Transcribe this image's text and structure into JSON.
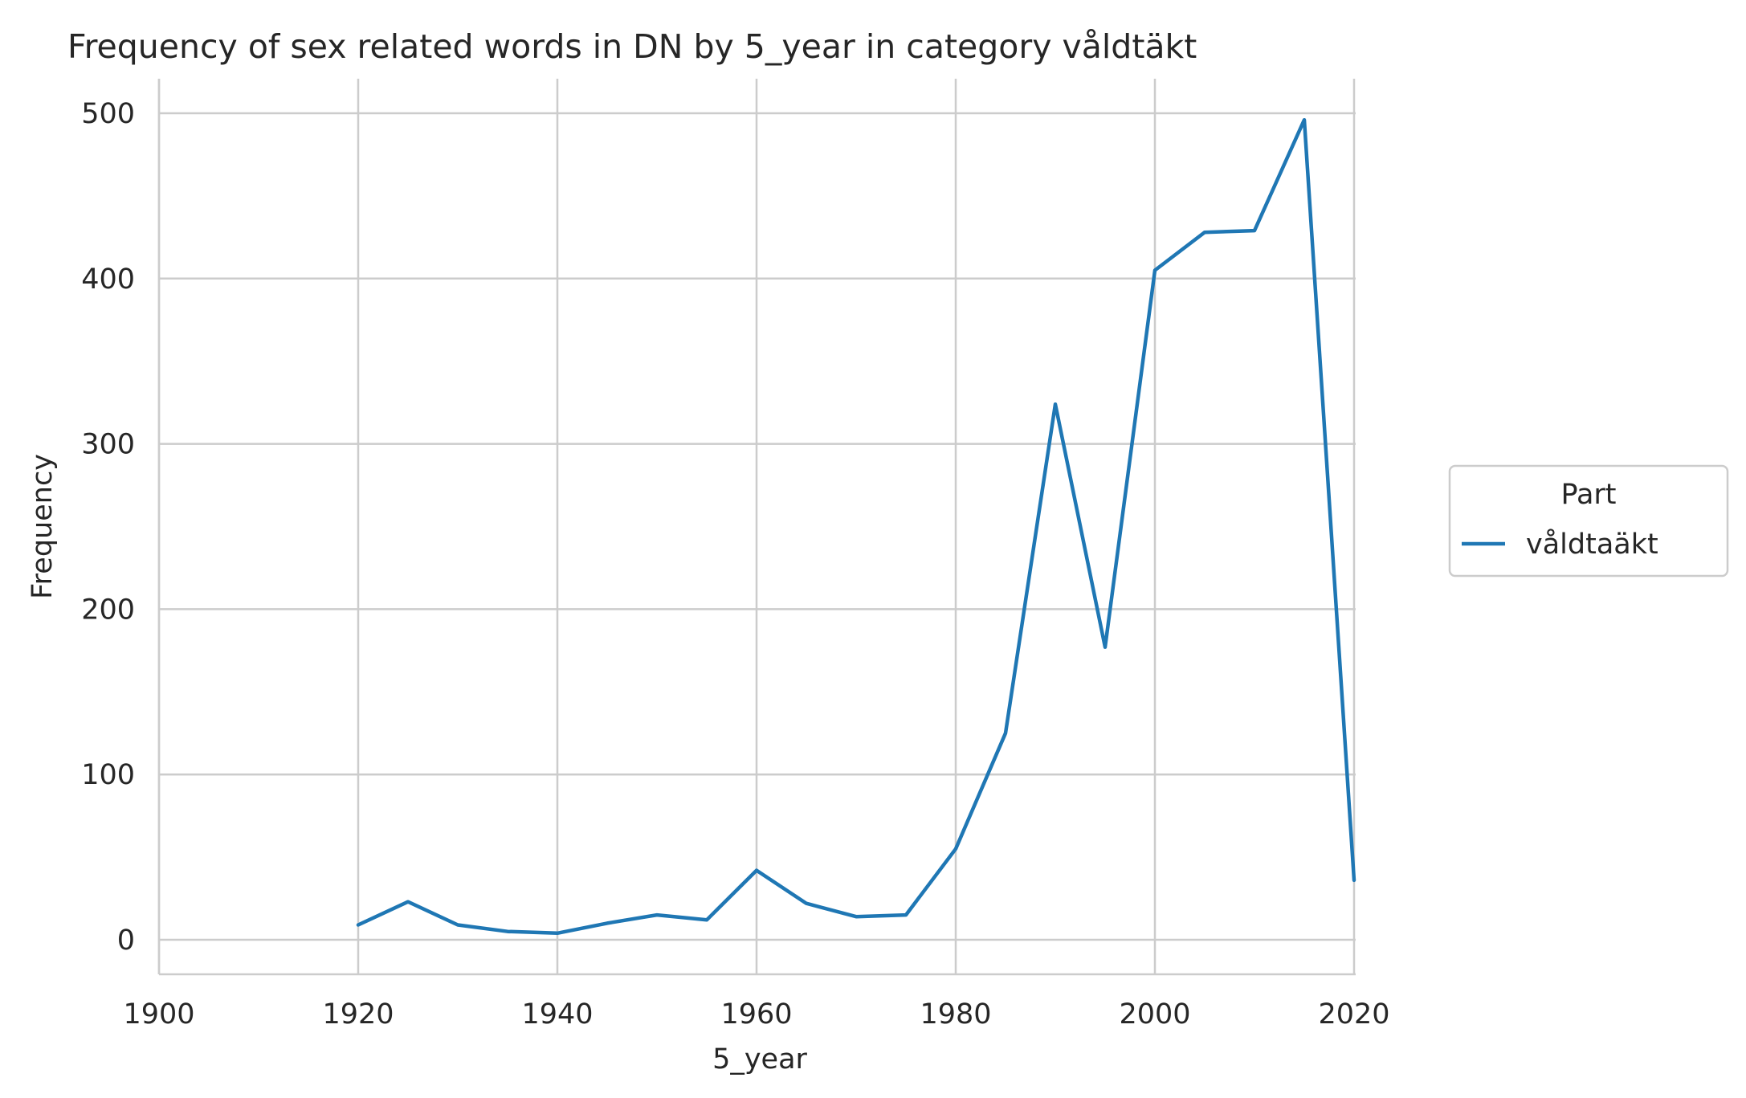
{
  "chart_data": {
    "type": "line",
    "title": "Frequency of sex related words in DN by 5_year in category våldtäkt",
    "xlabel": "5_year",
    "ylabel": "Frequency",
    "xlim": [
      1900,
      2020
    ],
    "ylim": [
      -20,
      520
    ],
    "xticks": [
      1900,
      1920,
      1940,
      1960,
      1980,
      2000,
      2020
    ],
    "yticks": [
      0,
      100,
      200,
      300,
      400,
      500
    ],
    "grid": true,
    "legend": {
      "title": "Part",
      "placement": "right-outside"
    },
    "series": [
      {
        "name": "våldtaäkt",
        "color": "#1f77b4",
        "x": [
          1920,
          1925,
          1930,
          1935,
          1940,
          1945,
          1950,
          1955,
          1960,
          1965,
          1970,
          1975,
          1980,
          1985,
          1990,
          1995,
          2000,
          2005,
          2010,
          2015,
          2020
        ],
        "y": [
          9,
          23,
          9,
          5,
          4,
          10,
          15,
          12,
          42,
          22,
          14,
          15,
          55,
          125,
          324,
          177,
          405,
          428,
          429,
          496,
          36
        ]
      }
    ]
  }
}
